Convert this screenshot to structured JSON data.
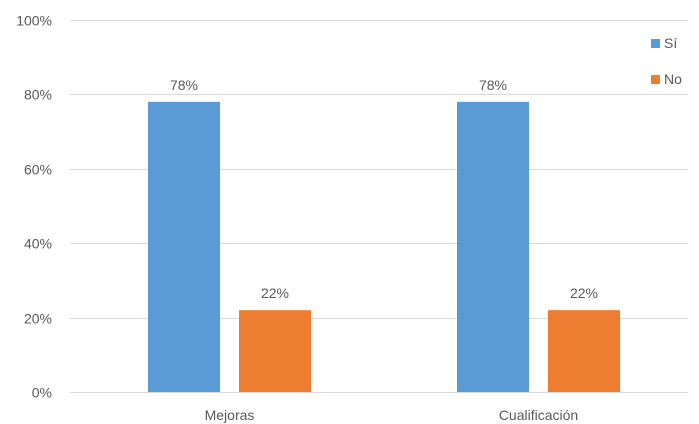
{
  "chart_data": {
    "type": "bar",
    "title": "",
    "xlabel": "",
    "ylabel": "",
    "categories": [
      "Mejoras",
      "Cualificación"
    ],
    "series": [
      {
        "name": "Sí",
        "color": "#5b9bd5",
        "values": [
          78,
          78
        ],
        "labels": [
          "78%",
          "78%"
        ]
      },
      {
        "name": "No",
        "color": "#ed7d31",
        "values": [
          22,
          22
        ],
        "labels": [
          "22%",
          "22%"
        ]
      }
    ],
    "ylim": [
      0,
      100
    ],
    "yticks": [
      0,
      20,
      40,
      60,
      80,
      100
    ],
    "ytick_labels": [
      "0%",
      "20%",
      "40%",
      "60%",
      "80%",
      "100%"
    ],
    "grid": true,
    "legend_position": "top-right"
  }
}
